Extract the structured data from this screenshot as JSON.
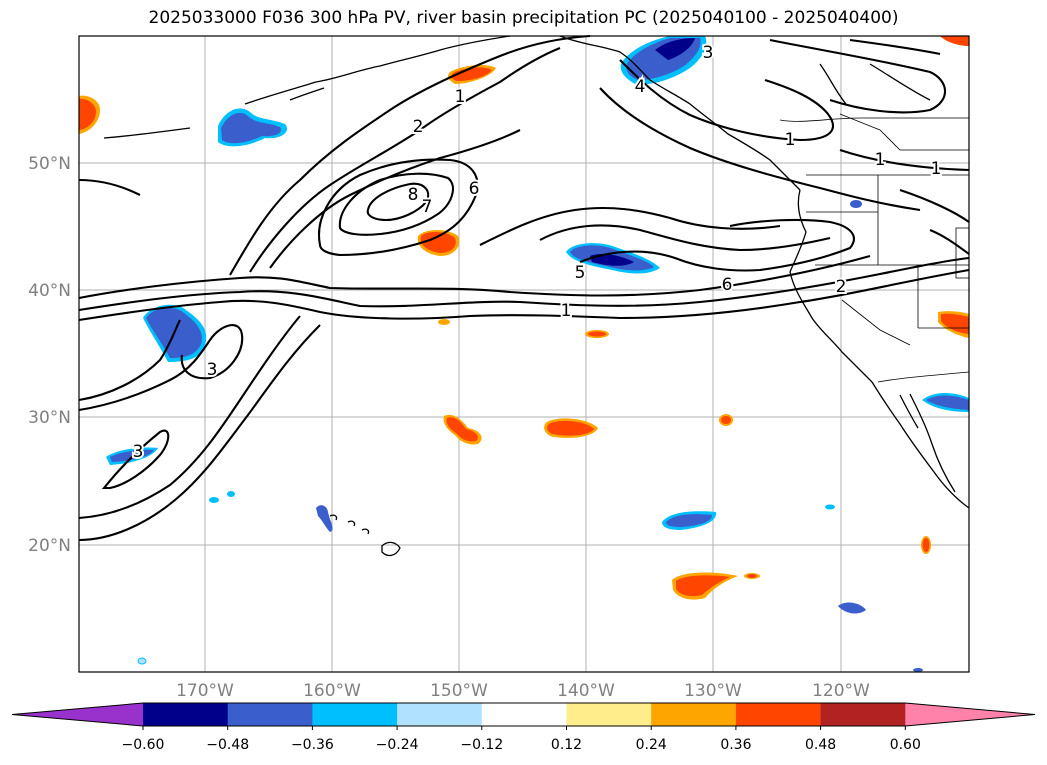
{
  "title": "2025033000 F036 300 hPa PV, river basin precipitation PC (2025040100 - 2025040400)",
  "map": {
    "lat_labels": [
      "50°N",
      "40°N",
      "30°N",
      "20°N"
    ],
    "lon_labels": [
      "170°W",
      "160°W",
      "150°W",
      "140°W",
      "130°W",
      "120°W"
    ],
    "contour_labels": [
      "1",
      "2",
      "3",
      "3",
      "3",
      "4",
      "5",
      "6",
      "6",
      "7",
      "8",
      "1",
      "1",
      "1",
      "1",
      "2"
    ]
  },
  "colorbar": {
    "ticks": [
      "−0.60",
      "−0.48",
      "−0.36",
      "−0.24",
      "−0.12",
      "0.12",
      "0.24",
      "0.36",
      "0.48",
      "0.60"
    ],
    "colors": [
      "#9932CC",
      "#00008B",
      "#3A5FCD",
      "#00BFFF",
      "#B0E2FF",
      "#FFFFFF",
      "#FFEC8B",
      "#FFA500",
      "#FF4500",
      "#B22222",
      "#FF82AB"
    ]
  },
  "colors": {
    "positive_main": "#FF4500",
    "positive_edge": "#FFA500",
    "negative_main": "#3A5FCD",
    "negative_dark": "#00008B",
    "negative_edge": "#00BFFF"
  }
}
